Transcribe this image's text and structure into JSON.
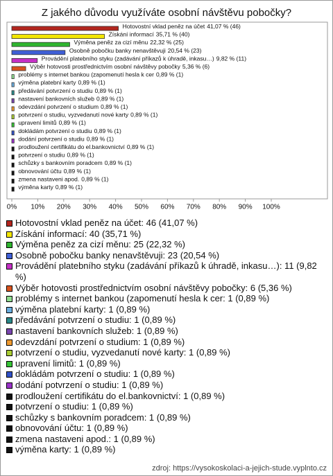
{
  "chart_data": {
    "type": "hbar",
    "title": "Z jakého důvodu využíváte osobní návštěvu pobočky?",
    "categories": [
      "Hotovostní vklad peněz na účet",
      "Získání informací",
      "Výměna peněz za cizí měnu",
      "Osobně pobočku banky nenavštěvuji",
      "Provádění platebního styku (zadávání příkazů k úhradě, inkasu…)",
      "Výběr hotovosti prostřednictvím osobní návštěvy pobočky",
      "problémy s internet bankou (zapomenutí hesla k cer",
      "výměna platební karty",
      "předávání potvrzení o studiu",
      "nastavení bankovních služeb",
      "odevzdání potvrzení o studium",
      "potvrzení o studiu, vyzvedanutí nové karty",
      "upravení limitů",
      "dokládám potvrzení o studiu",
      "dodání potvrzení o studiu",
      "prodloužení certifikátu do el.bankovnictví",
      "potvrzení o studiu",
      "schůzky s bankovním poradcem",
      "obnovování účtu",
      "zmena nastaveni apod.",
      "výměna karty"
    ],
    "values": [
      41.07,
      35.71,
      22.32,
      20.54,
      9.82,
      5.36,
      0.89,
      0.89,
      0.89,
      0.89,
      0.89,
      0.89,
      0.89,
      0.89,
      0.89,
      0.89,
      0.89,
      0.89,
      0.89,
      0.89,
      0.89
    ],
    "value_labels": [
      "41,07 % (46)",
      "35,71 % (40)",
      "22,32 % (25)",
      "20,54 % (23)",
      "9,82 % (11)",
      "5,36 % (6)",
      "0,89 % (1)",
      "0,89 % (1)",
      "0,89 % (1)",
      "0,89 % (1)",
      "0,89 % (1)",
      "0,89 % (1)",
      "0,89 % (1)",
      "0,89 % (1)",
      "0,89 % (1)",
      "0,89 % (1)",
      "0,89 % (1)",
      "0,89 % (1)",
      "0,89 % (1)",
      "0,89 % (1)",
      "0,89 % (1)"
    ],
    "legend": [
      "Hotovostní vklad peněz na účet: 46 (41,07 %)",
      "Získání informací: 40 (35,71 %)",
      "Výměna peněz za cizí měnu: 25 (22,32 %)",
      "Osobně pobočku banky nenavštěvuji: 23 (20,54 %)",
      "Provádění platebního styku (zadávání příkazů k úhradě, inkasu…): 11 (9,82 %)",
      "Výběr hotovosti prostřednictvím osobní návštěvy pobočky: 6 (5,36 %)",
      "problémy s internet bankou (zapomenutí hesla k cer: 1 (0,89 %)",
      "výměna platební karty: 1 (0,89 %)",
      "předávání potvrzení o studiu: 1 (0,89 %)",
      "nastavení bankovních služeb: 1 (0,89 %)",
      "odevzdání potvrzení o studium: 1 (0,89 %)",
      "potvrzení o studiu, vyzvedanutí nové karty: 1 (0,89 %)",
      "upravení limitů: 1 (0,89 %)",
      "dokládám potvrzení o studiu: 1 (0,89 %)",
      "dodání potvrzení o studiu: 1 (0,89 %)",
      "prodloužení certifikátu do el.bankovnictví: 1 (0,89 %)",
      "potvrzení o studiu: 1 (0,89 %)",
      "schůzky s bankovním poradcem: 1 (0,89 %)",
      "obnovování účtu: 1 (0,89 %)",
      "zmena nastaveni apod.: 1 (0,89 %)",
      "výměna karty: 1 (0,89 %)"
    ],
    "colors": [
      "#b3261e",
      "#f2e600",
      "#2fb52f",
      "#3f5fd6",
      "#c530c5",
      "#d9531e",
      "#8fdc8f",
      "#6aaee0",
      "#2a8a8a",
      "#7a46b0",
      "#ef9a30",
      "#a9cc33",
      "#36c436",
      "#3152c8",
      "#9a32c8",
      "#111111",
      "#111111",
      "#111111",
      "#111111",
      "#111111",
      "#111111"
    ],
    "xlim": [
      0,
      100
    ],
    "xticks": [
      {
        "value": 0,
        "label": "0%"
      },
      {
        "value": 10,
        "label": "10%"
      },
      {
        "value": 20,
        "label": "20%"
      },
      {
        "value": 30,
        "label": "30%"
      },
      {
        "value": 40,
        "label": "40%"
      },
      {
        "value": 50,
        "label": "50%"
      },
      {
        "value": 60,
        "label": "60%"
      },
      {
        "value": 70,
        "label": "70%"
      },
      {
        "value": 80,
        "label": "80%"
      },
      {
        "value": 90,
        "label": "90%"
      },
      {
        "value": 100,
        "label": "100%"
      }
    ],
    "source": "zdroj: https://vysokoskolaci-a-jejich-stude.vyplnto.cz"
  }
}
